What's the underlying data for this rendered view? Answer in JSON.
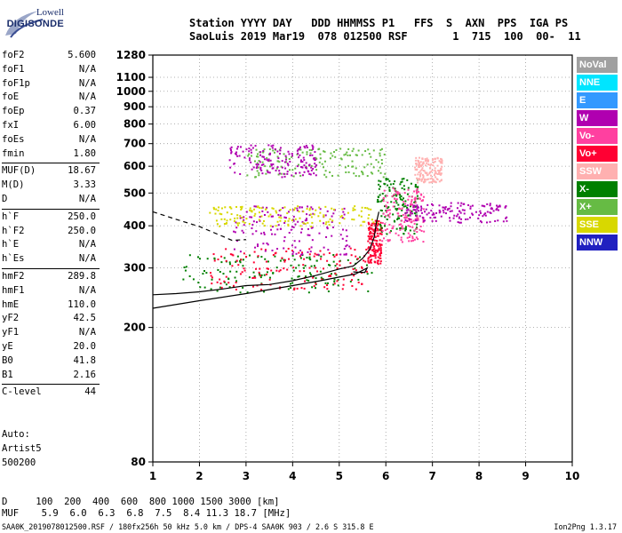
{
  "logo": {
    "line1": "Lowell",
    "line2": "DIGISONDE"
  },
  "header": {
    "row1": "Station YYYY DAY   DDD HHMMSS P1   FFS  S  AXN  PPS  IGA PS",
    "row2": "SaoLuis 2019 Mar19  078 012500 RSF       1  715  100  00-  11"
  },
  "params": [
    {
      "name": "foF2",
      "value": "5.600"
    },
    {
      "name": "foF1",
      "value": "N/A"
    },
    {
      "name": "foF1p",
      "value": "N/A"
    },
    {
      "name": "foE",
      "value": "N/A"
    },
    {
      "name": "foEp",
      "value": "0.37"
    },
    {
      "name": "fxI",
      "value": "6.00"
    },
    {
      "name": "foEs",
      "value": "N/A"
    },
    {
      "name": "fmin",
      "value": "1.80"
    },
    {
      "name": "MUF(D)",
      "value": "18.67"
    },
    {
      "name": "M(D)",
      "value": "3.33"
    },
    {
      "name": "D",
      "value": "N/A"
    },
    {
      "name": "h`F",
      "value": "250.0"
    },
    {
      "name": "h`F2",
      "value": "250.0"
    },
    {
      "name": "h`E",
      "value": "N/A"
    },
    {
      "name": "h`Es",
      "value": "N/A"
    },
    {
      "name": "hmF2",
      "value": "289.8"
    },
    {
      "name": "hmF1",
      "value": "N/A"
    },
    {
      "name": "hmE",
      "value": "110.0"
    },
    {
      "name": "yF2",
      "value": "42.5"
    },
    {
      "name": "yF1",
      "value": "N/A"
    },
    {
      "name": "yE",
      "value": "20.0"
    },
    {
      "name": "B0",
      "value": "41.8"
    },
    {
      "name": "B1",
      "value": "2.16"
    },
    {
      "name": "C-level",
      "value": "44"
    }
  ],
  "notes": {
    "label": "Auto:",
    "artist": "Artist5",
    "version": "500200"
  },
  "legend": [
    {
      "label": "NoVal",
      "color": "#a0a0a0",
      "text": "#ffffff"
    },
    {
      "label": "NNE",
      "color": "#00e5ff",
      "text": "#ffffff"
    },
    {
      "label": "E",
      "color": "#3399ff",
      "text": "#ffffff"
    },
    {
      "label": "W",
      "color": "#b000b0",
      "text": "#ffffff"
    },
    {
      "label": "Vo-",
      "color": "#ff40a0",
      "text": "#ffffff"
    },
    {
      "label": "Vo+",
      "color": "#ff0033",
      "text": "#ffffff"
    },
    {
      "label": "SSW",
      "color": "#ffb0b0",
      "text": "#ffffff"
    },
    {
      "label": "X-",
      "color": "#008000",
      "text": "#ffffff"
    },
    {
      "label": "X+",
      "color": "#66bb44",
      "text": "#ffffff"
    },
    {
      "label": "SSE",
      "color": "#d8d800",
      "text": "#ffffff"
    },
    {
      "label": "NNW",
      "color": "#2020c0",
      "text": "#ffffff"
    }
  ],
  "muf_table": {
    "d_row": "D     100  200  400  600  800 1000 1500 3000 [km]",
    "muf_row": "MUF    5.9  6.0  6.3  6.8  7.5  8.4 11.3 18.7 [MHz]"
  },
  "footer": {
    "left": "SAA0K_2019078012500.RSF / 180fx256h 50 kHz 5.0 km / DPS-4 SAA0K 903 / 2.6 S 315.8 E",
    "right": "Ion2Png 1.3.17"
  },
  "chart_data": {
    "type": "scatter",
    "title": "",
    "xlabel": "",
    "ylabel": "",
    "xlim": [
      1,
      10
    ],
    "ylim": [
      80,
      1280
    ],
    "x_ticks": [
      1,
      2,
      3,
      4,
      5,
      6,
      7,
      8,
      9,
      10
    ],
    "y_ticks": [
      80,
      200,
      300,
      400,
      500,
      600,
      700,
      800,
      900,
      1000,
      1100,
      1280
    ],
    "y_scale": "log",
    "grid": "dotted",
    "traces": [
      {
        "name": "profile",
        "style": "solid",
        "points": [
          [
            1,
            228
          ],
          [
            2,
            240
          ],
          [
            3,
            252
          ],
          [
            4,
            266
          ],
          [
            4.6,
            275
          ],
          [
            5,
            282
          ],
          [
            5.35,
            288
          ],
          [
            5.6,
            300
          ],
          [
            5.55,
            291
          ],
          [
            5.3,
            292
          ]
        ]
      },
      {
        "name": "virtual-height",
        "style": "solid",
        "points": [
          [
            1,
            250
          ],
          [
            1.5,
            252
          ],
          [
            2,
            255
          ],
          [
            2.5,
            260
          ],
          [
            3,
            266
          ],
          [
            3.5,
            268
          ],
          [
            4,
            275
          ],
          [
            4.5,
            285
          ],
          [
            5,
            298
          ],
          [
            5.3,
            304
          ],
          [
            5.5,
            320
          ],
          [
            5.65,
            340
          ],
          [
            5.75,
            370
          ],
          [
            5.8,
            410
          ],
          [
            5.85,
            440
          ]
        ]
      },
      {
        "name": "dashed-trace",
        "style": "dashed",
        "points": [
          [
            1,
            440
          ],
          [
            1.5,
            418
          ],
          [
            2,
            398
          ],
          [
            2.5,
            372
          ],
          [
            2.7,
            362
          ],
          [
            3,
            364
          ]
        ]
      }
    ],
    "clusters": [
      {
        "series": "X-",
        "x": [
          1.6,
          5.7
        ],
        "y": [
          255,
          330
        ]
      },
      {
        "series": "Vo+",
        "x": [
          2.2,
          5.6
        ],
        "y": [
          260,
          345
        ]
      },
      {
        "series": "Vo+",
        "x": [
          5.6,
          5.9
        ],
        "y": [
          310,
          420
        ]
      },
      {
        "series": "X-",
        "x": [
          5.8,
          6.7
        ],
        "y": [
          380,
          560
        ]
      },
      {
        "series": "Vo-",
        "x": [
          5.9,
          6.8
        ],
        "y": [
          360,
          520
        ]
      },
      {
        "series": "SSW",
        "x": [
          6.6,
          7.2
        ],
        "y": [
          540,
          640
        ]
      },
      {
        "series": "W",
        "x": [
          6.4,
          8.6
        ],
        "y": [
          410,
          470
        ]
      },
      {
        "series": "X+",
        "x": [
          3,
          6
        ],
        "y": [
          560,
          680
        ]
      },
      {
        "series": "W",
        "x": [
          2.6,
          4.5
        ],
        "y": [
          560,
          700
        ]
      },
      {
        "series": "W",
        "x": [
          2.7,
          5.2
        ],
        "y": [
          330,
          460
        ]
      },
      {
        "series": "SSE",
        "x": [
          2.2,
          5.8
        ],
        "y": [
          400,
          460
        ]
      }
    ]
  }
}
